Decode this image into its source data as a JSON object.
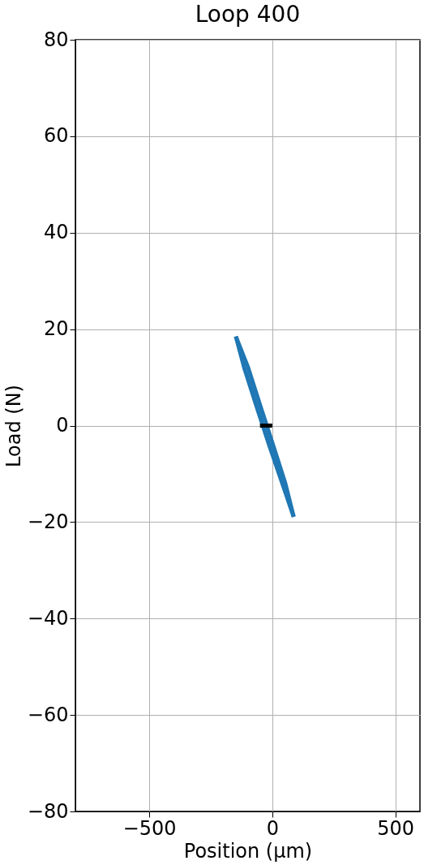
{
  "chart_data": {
    "type": "line",
    "title": "Loop 400",
    "xlabel": "Position (µm)",
    "ylabel": "Load (N)",
    "xlim": [
      -800,
      600
    ],
    "xticks": [
      {
        "value": -500,
        "label": "−500"
      },
      0,
      500
    ],
    "ylim": [
      -80,
      80
    ],
    "yticks": [
      {
        "value": -80,
        "label": "−80"
      },
      {
        "value": -60,
        "label": "−60"
      },
      {
        "value": -40,
        "label": "−40"
      },
      {
        "value": -20,
        "label": "−20"
      },
      0,
      20,
      40,
      60,
      80
    ],
    "grid": true,
    "marker": "none",
    "line_style": "solid",
    "series": [
      {
        "color": "#1f77b4",
        "x": [
          -148,
          -98,
          -48,
          3,
          53,
          87
        ],
        "values": [
          18.5,
          12,
          4,
          -4,
          -12,
          -18.9
        ]
      },
      {
        "color": "#1f77b4",
        "x": [
          87,
          41,
          -13,
          -64,
          -114,
          -148
        ],
        "values": [
          -18.9,
          -12,
          -4,
          4,
          12,
          18.5
        ]
      },
      {
        "color": "#000000",
        "x": [
          -50,
          0
        ],
        "values": [
          0,
          0
        ]
      }
    ]
  }
}
